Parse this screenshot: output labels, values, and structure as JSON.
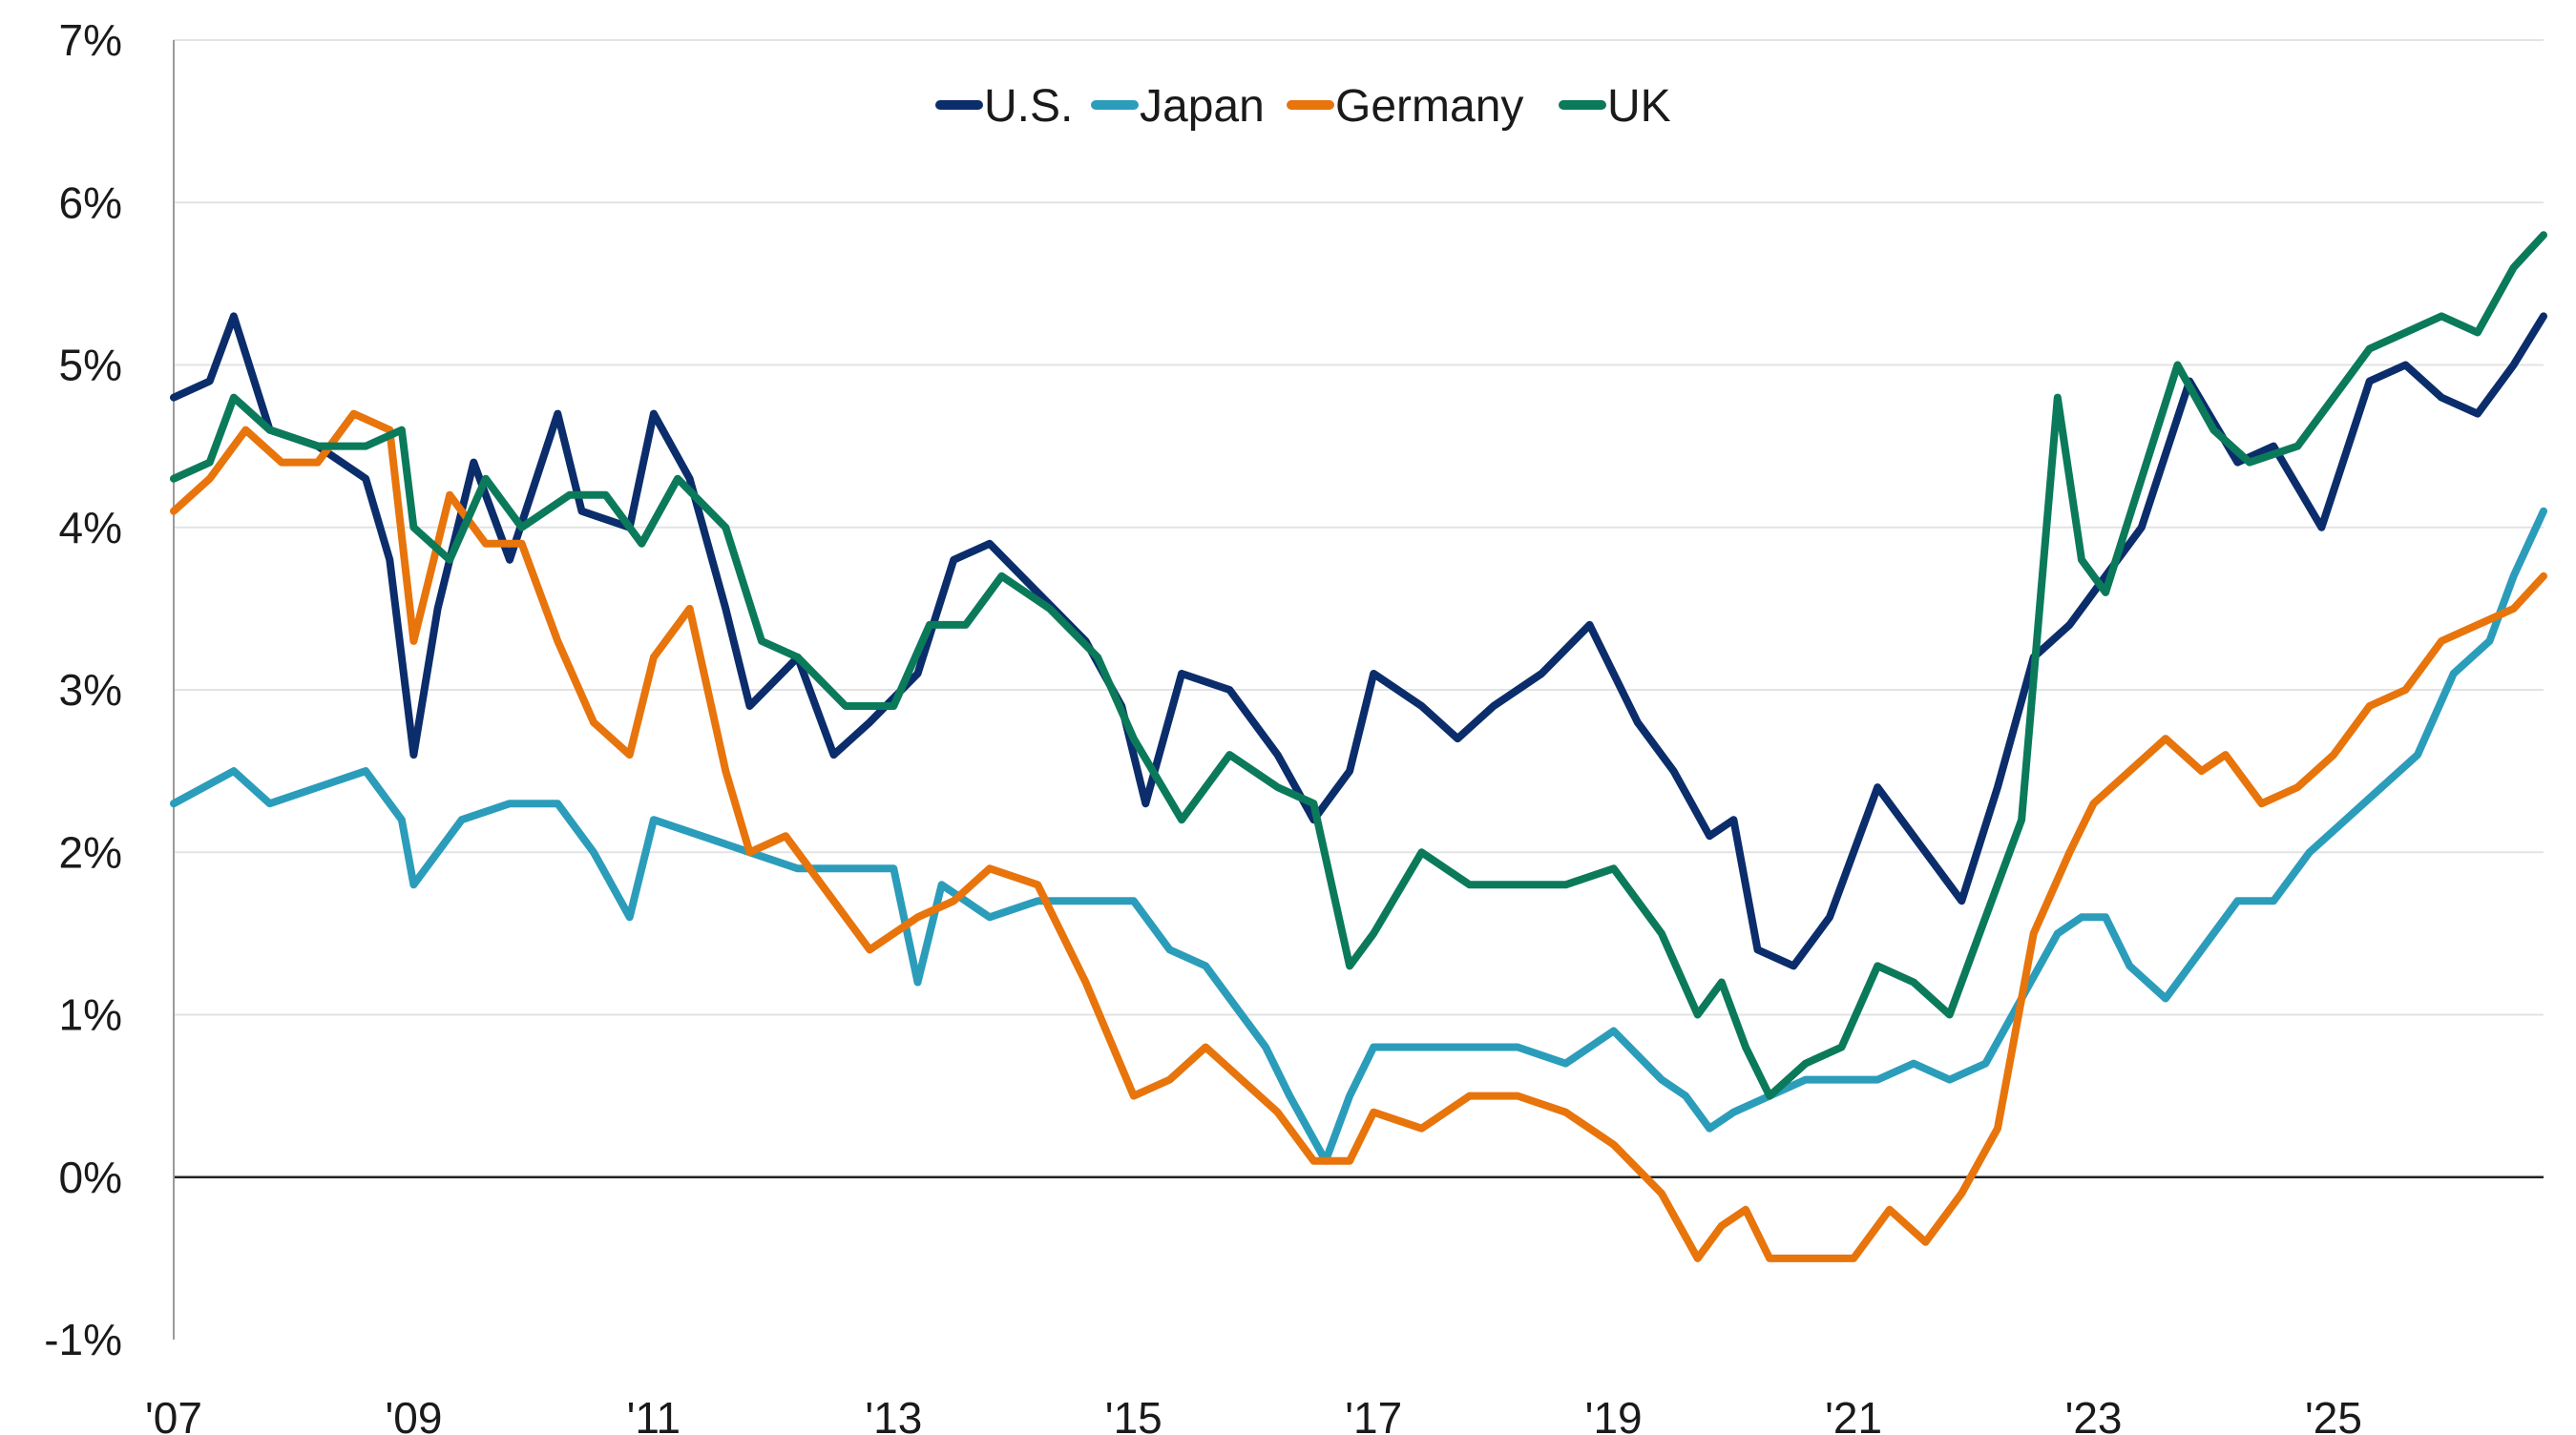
{
  "chart_data": {
    "type": "line",
    "title": "",
    "xlabel": "",
    "ylabel": "",
    "x_tick_labels": [
      "'07",
      "'09",
      "'11",
      "'13",
      "'15",
      "'17",
      "'19",
      "'21",
      "'23",
      "'25"
    ],
    "x_tick_years": [
      2007,
      2009,
      2011,
      2013,
      2015,
      2017,
      2019,
      2021,
      2023,
      2025
    ],
    "xlim": [
      2007,
      2026.75
    ],
    "y_tick_labels": [
      "7%",
      "6%",
      "5%",
      "4%",
      "3%",
      "2%",
      "1%",
      "0%",
      "-1%"
    ],
    "y_tick_values": [
      7,
      6,
      5,
      4,
      3,
      2,
      1,
      0,
      -1
    ],
    "ylim": [
      -1,
      7
    ],
    "grid": true,
    "legend_position": "top-center",
    "series": [
      {
        "name": "U.S.",
        "color": "#0b2d6b",
        "x": [
          2007.0,
          2007.3,
          2007.5,
          2007.8,
          2008.2,
          2008.6,
          2008.8,
          2009.0,
          2009.2,
          2009.5,
          2009.8,
          2010.2,
          2010.4,
          2010.8,
          2011.0,
          2011.3,
          2011.6,
          2011.8,
          2012.2,
          2012.5,
          2012.8,
          2013.2,
          2013.5,
          2013.8,
          2014.2,
          2014.6,
          2014.9,
          2015.1,
          2015.4,
          2015.8,
          2016.2,
          2016.5,
          2016.8,
          2017.0,
          2017.4,
          2017.7,
          2018.0,
          2018.4,
          2018.8,
          2019.2,
          2019.5,
          2019.8,
          2020.0,
          2020.2,
          2020.5,
          2020.8,
          2021.2,
          2021.6,
          2021.9,
          2022.2,
          2022.5,
          2022.8,
          2023.1,
          2023.4,
          2023.8,
          2024.2,
          2024.5,
          2024.9,
          2025.3,
          2025.6,
          2025.9,
          2026.2,
          2026.5,
          2026.75
        ],
        "y": [
          4.8,
          4.9,
          5.3,
          4.6,
          4.5,
          4.3,
          3.8,
          2.6,
          3.5,
          4.4,
          3.8,
          4.7,
          4.1,
          4.0,
          4.7,
          4.3,
          3.5,
          2.9,
          3.2,
          2.6,
          2.8,
          3.1,
          3.8,
          3.9,
          3.6,
          3.3,
          2.9,
          2.3,
          3.1,
          3.0,
          2.6,
          2.2,
          2.5,
          3.1,
          2.9,
          2.7,
          2.9,
          3.1,
          3.4,
          2.8,
          2.5,
          2.1,
          2.2,
          1.4,
          1.3,
          1.6,
          2.4,
          2.0,
          1.7,
          2.4,
          3.2,
          3.4,
          3.7,
          4.0,
          4.9,
          4.4,
          4.5,
          4.0,
          4.9,
          5.0,
          4.8,
          4.7,
          5.0,
          5.3
        ]
      },
      {
        "name": "Japan",
        "color": "#2b9dbb",
        "x": [
          2007.0,
          2007.5,
          2007.8,
          2008.2,
          2008.6,
          2008.9,
          2009.0,
          2009.4,
          2009.8,
          2010.2,
          2010.5,
          2010.8,
          2011.0,
          2011.4,
          2011.8,
          2012.2,
          2012.6,
          2013.0,
          2013.2,
          2013.4,
          2013.8,
          2014.2,
          2014.6,
          2015.0,
          2015.3,
          2015.6,
          2015.9,
          2016.1,
          2016.3,
          2016.6,
          2016.8,
          2017.0,
          2017.4,
          2017.8,
          2018.2,
          2018.6,
          2019.0,
          2019.4,
          2019.6,
          2019.8,
          2020.0,
          2020.3,
          2020.6,
          2020.9,
          2021.2,
          2021.5,
          2021.8,
          2022.1,
          2022.4,
          2022.7,
          2022.9,
          2023.1,
          2023.3,
          2023.6,
          2023.9,
          2024.2,
          2024.5,
          2024.8,
          2025.1,
          2025.4,
          2025.7,
          2026.0,
          2026.3,
          2026.5,
          2026.75
        ],
        "y": [
          2.3,
          2.5,
          2.3,
          2.4,
          2.5,
          2.2,
          1.8,
          2.2,
          2.3,
          2.3,
          2.0,
          1.6,
          2.2,
          2.1,
          2.0,
          1.9,
          1.9,
          1.9,
          1.2,
          1.8,
          1.6,
          1.7,
          1.7,
          1.7,
          1.4,
          1.3,
          1.0,
          0.8,
          0.5,
          0.1,
          0.5,
          0.8,
          0.8,
          0.8,
          0.8,
          0.7,
          0.9,
          0.6,
          0.5,
          0.3,
          0.4,
          0.5,
          0.6,
          0.6,
          0.6,
          0.7,
          0.6,
          0.7,
          1.1,
          1.5,
          1.6,
          1.6,
          1.3,
          1.1,
          1.4,
          1.7,
          1.7,
          2.0,
          2.2,
          2.4,
          2.6,
          3.1,
          3.3,
          3.7,
          4.1
        ]
      },
      {
        "name": "Germany",
        "color": "#e8740c",
        "x": [
          2007.0,
          2007.3,
          2007.6,
          2007.9,
          2008.2,
          2008.5,
          2008.8,
          2009.0,
          2009.3,
          2009.6,
          2009.9,
          2010.2,
          2010.5,
          2010.8,
          2011.0,
          2011.3,
          2011.6,
          2011.8,
          2012.1,
          2012.5,
          2012.8,
          2013.2,
          2013.5,
          2013.8,
          2014.2,
          2014.6,
          2015.0,
          2015.3,
          2015.6,
          2015.9,
          2016.2,
          2016.5,
          2016.8,
          2017.0,
          2017.4,
          2017.8,
          2018.2,
          2018.6,
          2019.0,
          2019.4,
          2019.7,
          2019.9,
          2020.1,
          2020.3,
          2020.6,
          2021.0,
          2021.3,
          2021.6,
          2021.9,
          2022.2,
          2022.5,
          2022.8,
          2023.0,
          2023.3,
          2023.6,
          2023.9,
          2024.1,
          2024.4,
          2024.7,
          2025.0,
          2025.3,
          2025.6,
          2025.9,
          2026.2,
          2026.5,
          2026.75
        ],
        "y": [
          4.1,
          4.3,
          4.6,
          4.4,
          4.4,
          4.7,
          4.6,
          3.3,
          4.2,
          3.9,
          3.9,
          3.3,
          2.8,
          2.6,
          3.2,
          3.5,
          2.5,
          2.0,
          2.1,
          1.7,
          1.4,
          1.6,
          1.7,
          1.9,
          1.8,
          1.2,
          0.5,
          0.6,
          0.8,
          0.6,
          0.4,
          0.1,
          0.1,
          0.4,
          0.3,
          0.5,
          0.5,
          0.4,
          0.2,
          -0.1,
          -0.5,
          -0.3,
          -0.2,
          -0.5,
          -0.5,
          -0.5,
          -0.2,
          -0.4,
          -0.1,
          0.3,
          1.5,
          2.0,
          2.3,
          2.5,
          2.7,
          2.5,
          2.6,
          2.3,
          2.4,
          2.6,
          2.9,
          3.0,
          3.3,
          3.4,
          3.5,
          3.7
        ]
      },
      {
        "name": "UK",
        "color": "#0b7a5a",
        "x": [
          2007.0,
          2007.3,
          2007.5,
          2007.8,
          2008.2,
          2008.6,
          2008.9,
          2009.0,
          2009.3,
          2009.6,
          2009.9,
          2010.3,
          2010.6,
          2010.9,
          2011.2,
          2011.6,
          2011.9,
          2012.2,
          2012.6,
          2013.0,
          2013.3,
          2013.6,
          2013.9,
          2014.3,
          2014.7,
          2015.0,
          2015.4,
          2015.8,
          2016.2,
          2016.5,
          2016.8,
          2017.0,
          2017.4,
          2017.8,
          2018.2,
          2018.6,
          2019.0,
          2019.4,
          2019.7,
          2019.9,
          2020.1,
          2020.3,
          2020.6,
          2020.9,
          2021.2,
          2021.5,
          2021.8,
          2022.1,
          2022.4,
          2022.7,
          2022.9,
          2023.1,
          2023.4,
          2023.7,
          2024.0,
          2024.3,
          2024.7,
          2025.0,
          2025.3,
          2025.6,
          2025.9,
          2026.2,
          2026.5,
          2026.75
        ],
        "y": [
          4.3,
          4.4,
          4.8,
          4.6,
          4.5,
          4.5,
          4.6,
          4.0,
          3.8,
          4.3,
          4.0,
          4.2,
          4.2,
          3.9,
          4.3,
          4.0,
          3.3,
          3.2,
          2.9,
          2.9,
          3.4,
          3.4,
          3.7,
          3.5,
          3.2,
          2.7,
          2.2,
          2.6,
          2.4,
          2.3,
          1.3,
          1.5,
          2.0,
          1.8,
          1.8,
          1.8,
          1.9,
          1.5,
          1.0,
          1.2,
          0.8,
          0.5,
          0.7,
          0.8,
          1.3,
          1.2,
          1.0,
          1.6,
          2.2,
          4.8,
          3.8,
          3.6,
          4.3,
          5.0,
          4.6,
          4.4,
          4.5,
          4.8,
          5.1,
          5.2,
          5.3,
          5.2,
          5.6,
          5.8
        ]
      }
    ]
  }
}
